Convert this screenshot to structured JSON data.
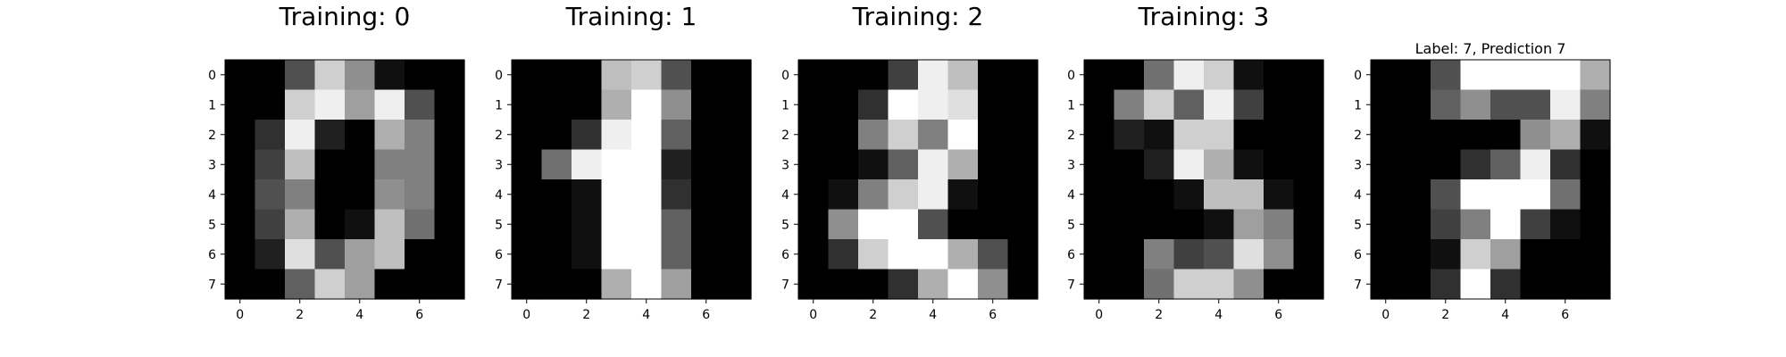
{
  "figure": {
    "background": "#ffffff",
    "colormap": "gray",
    "vmin": 0,
    "vmax": 16
  },
  "chart_data": [
    {
      "type": "heatmap",
      "title": "Training: 0",
      "xlabel": "",
      "ylabel": "",
      "x_ticks": [
        "0",
        "2",
        "4",
        "6"
      ],
      "y_ticks": [
        "0",
        "1",
        "2",
        "3",
        "4",
        "5",
        "6",
        "7"
      ],
      "grid": false,
      "values": [
        [
          0,
          0,
          5,
          13,
          9,
          1,
          0,
          0
        ],
        [
          0,
          0,
          13,
          15,
          10,
          15,
          5,
          0
        ],
        [
          0,
          3,
          15,
          2,
          0,
          11,
          8,
          0
        ],
        [
          0,
          4,
          12,
          0,
          0,
          8,
          8,
          0
        ],
        [
          0,
          5,
          8,
          0,
          0,
          9,
          8,
          0
        ],
        [
          0,
          4,
          11,
          0,
          1,
          12,
          7,
          0
        ],
        [
          0,
          2,
          14,
          5,
          10,
          12,
          0,
          0
        ],
        [
          0,
          0,
          6,
          13,
          10,
          0,
          0,
          0
        ]
      ]
    },
    {
      "type": "heatmap",
      "title": "Training: 1",
      "xlabel": "",
      "ylabel": "",
      "x_ticks": [
        "0",
        "2",
        "4",
        "6"
      ],
      "y_ticks": [
        "0",
        "1",
        "2",
        "3",
        "4",
        "5",
        "6",
        "7"
      ],
      "grid": false,
      "values": [
        [
          0,
          0,
          0,
          12,
          13,
          5,
          0,
          0
        ],
        [
          0,
          0,
          0,
          11,
          16,
          9,
          0,
          0
        ],
        [
          0,
          0,
          3,
          15,
          16,
          6,
          0,
          0
        ],
        [
          0,
          7,
          15,
          16,
          16,
          2,
          0,
          0
        ],
        [
          0,
          0,
          1,
          16,
          16,
          3,
          0,
          0
        ],
        [
          0,
          0,
          1,
          16,
          16,
          6,
          0,
          0
        ],
        [
          0,
          0,
          1,
          16,
          16,
          6,
          0,
          0
        ],
        [
          0,
          0,
          0,
          11,
          16,
          10,
          0,
          0
        ]
      ]
    },
    {
      "type": "heatmap",
      "title": "Training: 2",
      "xlabel": "",
      "ylabel": "",
      "x_ticks": [
        "0",
        "2",
        "4",
        "6"
      ],
      "y_ticks": [
        "0",
        "1",
        "2",
        "3",
        "4",
        "5",
        "6",
        "7"
      ],
      "grid": false,
      "values": [
        [
          0,
          0,
          0,
          4,
          15,
          12,
          0,
          0
        ],
        [
          0,
          0,
          3,
          16,
          15,
          14,
          0,
          0
        ],
        [
          0,
          0,
          8,
          13,
          8,
          16,
          0,
          0
        ],
        [
          0,
          0,
          1,
          6,
          15,
          11,
          0,
          0
        ],
        [
          0,
          1,
          8,
          13,
          15,
          1,
          0,
          0
        ],
        [
          0,
          9,
          16,
          16,
          5,
          0,
          0,
          0
        ],
        [
          0,
          3,
          13,
          16,
          16,
          11,
          5,
          0
        ],
        [
          0,
          0,
          0,
          3,
          11,
          16,
          9,
          0
        ]
      ]
    },
    {
      "type": "heatmap",
      "title": "Training: 3",
      "xlabel": "",
      "ylabel": "",
      "x_ticks": [
        "0",
        "2",
        "4",
        "6"
      ],
      "y_ticks": [
        "0",
        "1",
        "2",
        "3",
        "4",
        "5",
        "6",
        "7"
      ],
      "grid": false,
      "values": [
        [
          0,
          0,
          7,
          15,
          13,
          1,
          0,
          0
        ],
        [
          0,
          8,
          13,
          6,
          15,
          4,
          0,
          0
        ],
        [
          0,
          2,
          1,
          13,
          13,
          0,
          0,
          0
        ],
        [
          0,
          0,
          2,
          15,
          11,
          1,
          0,
          0
        ],
        [
          0,
          0,
          0,
          1,
          12,
          12,
          1,
          0
        ],
        [
          0,
          0,
          0,
          0,
          1,
          10,
          8,
          0
        ],
        [
          0,
          0,
          8,
          4,
          5,
          14,
          9,
          0
        ],
        [
          0,
          0,
          7,
          13,
          13,
          9,
          0,
          0
        ]
      ]
    },
    {
      "type": "heatmap",
      "title": "Label: 7, Prediction 7",
      "xlabel": "",
      "ylabel": "",
      "x_ticks": [
        "0",
        "2",
        "4",
        "6"
      ],
      "y_ticks": [
        "0",
        "1",
        "2",
        "3",
        "4",
        "5",
        "6",
        "7"
      ],
      "grid": false,
      "values": [
        [
          0,
          0,
          5,
          16,
          16,
          16,
          16,
          11
        ],
        [
          0,
          0,
          6,
          9,
          5,
          5,
          15,
          8
        ],
        [
          0,
          0,
          0,
          0,
          0,
          9,
          11,
          1
        ],
        [
          0,
          0,
          0,
          3,
          6,
          15,
          3,
          0
        ],
        [
          0,
          0,
          5,
          16,
          16,
          16,
          7,
          0
        ],
        [
          0,
          0,
          4,
          8,
          16,
          4,
          1,
          0
        ],
        [
          0,
          0,
          1,
          13,
          10,
          0,
          0,
          0
        ],
        [
          0,
          0,
          3,
          16,
          3,
          0,
          0,
          0
        ]
      ]
    }
  ]
}
